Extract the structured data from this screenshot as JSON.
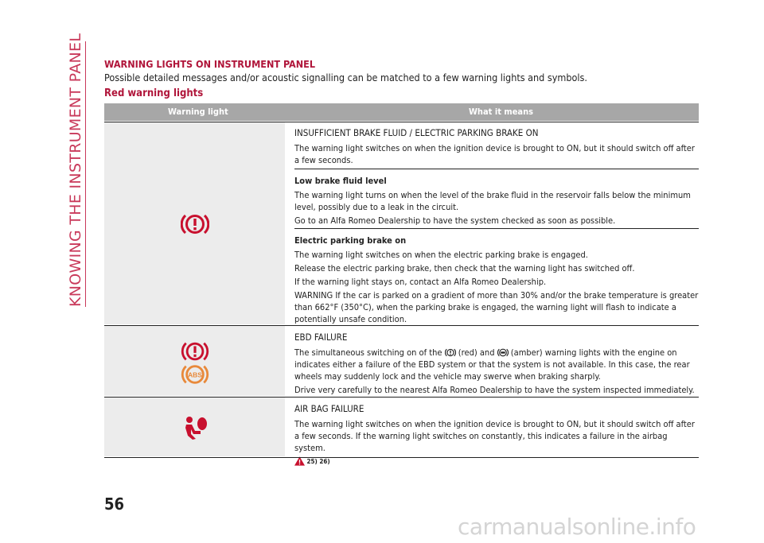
{
  "side_title": "KNOWING THE INSTRUMENT PANEL",
  "heading": "WARNING LIGHTS ON INSTRUMENT PANEL",
  "intro": "Possible detailed messages and/or acoustic signalling can be matched to a few warning lights and symbols.",
  "subheading": "Red warning lights",
  "table": {
    "col1": "Warning light",
    "col2": "What it means",
    "rows": [
      {
        "icons": [
          "brake-warning-icon"
        ],
        "sections": [
          {
            "title": "INSUFFICIENT BRAKE FLUID / ELECTRIC PARKING BRAKE ON",
            "lines": [
              "The warning light switches on when the ignition device is brought to ON, but it should switch off after a few seconds."
            ]
          },
          {
            "title": "Low brake fluid level",
            "lines": [
              "The warning light turns on when the level of the brake fluid in the reservoir falls below the minimum level, possibly due to a leak in the circuit.",
              "Go to an Alfa Romeo Dealership to have the system checked as soon as possible."
            ]
          },
          {
            "title": "Electric parking brake on",
            "lines": [
              "The warning light switches on when the electric parking brake is engaged.",
              "Release the electric parking brake, then check that the warning light has switched off.",
              "If the warning light stays on, contact an Alfa Romeo Dealership.",
              "WARNING If the car is parked on a gradient of more than 30% and/or the brake temperature is greater than 662°F (350°C), when the parking brake is engaged, the warning light will flash to indicate a potentially unsafe condition."
            ]
          }
        ]
      },
      {
        "icons": [
          "brake-warning-icon",
          "abs-warning-icon"
        ],
        "sections": [
          {
            "title": "EBD FAILURE",
            "line1_a": "The simultaneous switching on of the",
            "line1_b": "(red) and",
            "line1_c": "(amber) warning lights with the engine on indicates either a failure of the EBD system or that the system is not available. In this case, the rear wheels may suddenly lock and the vehicle may swerve when braking sharply.",
            "line2": "Drive very carefully to the nearest Alfa Romeo Dealership to have the system inspected immediately."
          }
        ]
      },
      {
        "icons": [
          "airbag-warning-icon"
        ],
        "sections": [
          {
            "title": "AIR BAG FAILURE",
            "lines": [
              "The warning light switches on when the ignition device is brought to ON, but it should switch off after a few seconds. If the warning light switches on constantly, this indicates a failure in the airbag system."
            ],
            "refs": "25) 26)"
          }
        ]
      }
    ]
  },
  "abs_label": "ABS",
  "page_number": "56",
  "watermark": "carmanualsonline.info",
  "colors": {
    "accent": "#b0153a",
    "red_icon": "#c8102e",
    "amber_icon": "#e8893a",
    "header_gray": "#a7a7a7",
    "icon_col_bg": "#ececec"
  }
}
